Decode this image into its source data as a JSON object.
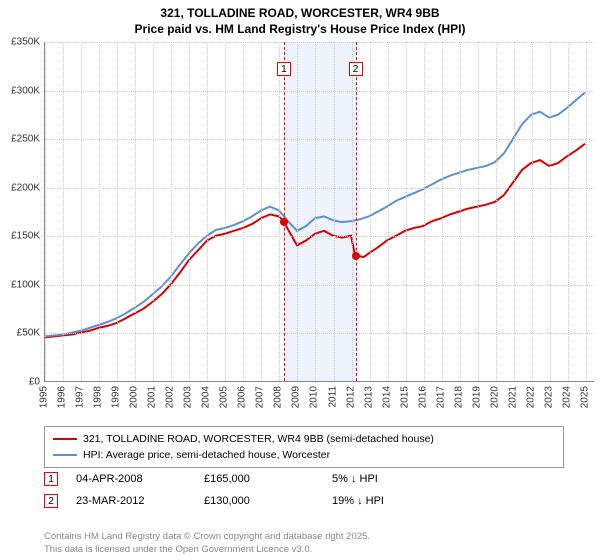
{
  "title_line1": "321, TOLLADINE ROAD, WORCESTER, WR4 9BB",
  "title_line2": "Price paid vs. HM Land Registry's House Price Index (HPI)",
  "chart": {
    "type": "line",
    "background_color": "#ffffff",
    "grid_color": "#cccccc",
    "axis_color": "#888888",
    "x_years": [
      1995,
      1996,
      1997,
      1998,
      1999,
      2000,
      2001,
      2002,
      2003,
      2004,
      2005,
      2006,
      2007,
      2008,
      2009,
      2010,
      2011,
      2012,
      2013,
      2014,
      2015,
      2016,
      2017,
      2018,
      2019,
      2020,
      2021,
      2022,
      2023,
      2024,
      2025
    ],
    "x_min": 1995,
    "x_max": 2025.5,
    "y_ticks": [
      0,
      50000,
      100000,
      150000,
      200000,
      250000,
      300000,
      350000
    ],
    "y_tick_labels": [
      "£0",
      "£50K",
      "£100K",
      "£150K",
      "£200K",
      "£250K",
      "£300K",
      "£350K"
    ],
    "y_min": 0,
    "y_max": 350000,
    "band": {
      "x_start": 2008.25,
      "x_end": 2012.22,
      "fill": "#eef3fb"
    },
    "flags": [
      {
        "n": "1",
        "x": 2008.25
      },
      {
        "n": "2",
        "x": 2012.22
      }
    ],
    "series": [
      {
        "name": "price_paid",
        "color": "#d90000",
        "width": 2,
        "points": [
          [
            1995,
            45000
          ],
          [
            1995.5,
            46000
          ],
          [
            1996,
            47000
          ],
          [
            1996.5,
            48000
          ],
          [
            1997,
            50000
          ],
          [
            1997.5,
            52000
          ],
          [
            1998,
            55000
          ],
          [
            1998.5,
            57000
          ],
          [
            1999,
            60000
          ],
          [
            1999.5,
            65000
          ],
          [
            2000,
            70000
          ],
          [
            2000.5,
            75000
          ],
          [
            2001,
            82000
          ],
          [
            2001.5,
            90000
          ],
          [
            2002,
            100000
          ],
          [
            2002.5,
            112000
          ],
          [
            2003,
            125000
          ],
          [
            2003.5,
            135000
          ],
          [
            2004,
            145000
          ],
          [
            2004.5,
            150000
          ],
          [
            2005,
            152000
          ],
          [
            2005.5,
            155000
          ],
          [
            2006,
            158000
          ],
          [
            2006.5,
            162000
          ],
          [
            2007,
            168000
          ],
          [
            2007.5,
            172000
          ],
          [
            2008,
            170000
          ],
          [
            2008.25,
            165000
          ],
          [
            2008.7,
            150000
          ],
          [
            2009,
            140000
          ],
          [
            2009.5,
            145000
          ],
          [
            2010,
            152000
          ],
          [
            2010.5,
            155000
          ],
          [
            2011,
            150000
          ],
          [
            2011.5,
            148000
          ],
          [
            2012,
            150000
          ],
          [
            2012.22,
            130000
          ],
          [
            2012.7,
            128000
          ],
          [
            2013,
            132000
          ],
          [
            2013.5,
            138000
          ],
          [
            2014,
            145000
          ],
          [
            2014.5,
            150000
          ],
          [
            2015,
            155000
          ],
          [
            2015.5,
            158000
          ],
          [
            2016,
            160000
          ],
          [
            2016.5,
            165000
          ],
          [
            2017,
            168000
          ],
          [
            2017.5,
            172000
          ],
          [
            2018,
            175000
          ],
          [
            2018.5,
            178000
          ],
          [
            2019,
            180000
          ],
          [
            2019.5,
            182000
          ],
          [
            2020,
            185000
          ],
          [
            2020.5,
            192000
          ],
          [
            2021,
            205000
          ],
          [
            2021.5,
            218000
          ],
          [
            2022,
            225000
          ],
          [
            2022.5,
            228000
          ],
          [
            2023,
            222000
          ],
          [
            2023.5,
            225000
          ],
          [
            2024,
            232000
          ],
          [
            2024.5,
            238000
          ],
          [
            2025,
            245000
          ]
        ]
      },
      {
        "name": "hpi",
        "color": "#5b8fd6",
        "width": 2,
        "points": [
          [
            1995,
            46000
          ],
          [
            1995.5,
            47000
          ],
          [
            1996,
            48000
          ],
          [
            1996.5,
            50000
          ],
          [
            1997,
            52000
          ],
          [
            1997.5,
            55000
          ],
          [
            1998,
            58000
          ],
          [
            1998.5,
            61000
          ],
          [
            1999,
            65000
          ],
          [
            1999.5,
            70000
          ],
          [
            2000,
            76000
          ],
          [
            2000.5,
            82000
          ],
          [
            2001,
            90000
          ],
          [
            2001.5,
            98000
          ],
          [
            2002,
            108000
          ],
          [
            2002.5,
            120000
          ],
          [
            2003,
            132000
          ],
          [
            2003.5,
            142000
          ],
          [
            2004,
            150000
          ],
          [
            2004.5,
            156000
          ],
          [
            2005,
            158000
          ],
          [
            2005.5,
            161000
          ],
          [
            2006,
            165000
          ],
          [
            2006.5,
            170000
          ],
          [
            2007,
            176000
          ],
          [
            2007.5,
            180000
          ],
          [
            2008,
            176000
          ],
          [
            2008.5,
            165000
          ],
          [
            2009,
            155000
          ],
          [
            2009.5,
            160000
          ],
          [
            2010,
            168000
          ],
          [
            2010.5,
            170000
          ],
          [
            2011,
            166000
          ],
          [
            2011.5,
            164000
          ],
          [
            2012,
            165000
          ],
          [
            2012.5,
            167000
          ],
          [
            2013,
            170000
          ],
          [
            2013.5,
            175000
          ],
          [
            2014,
            180000
          ],
          [
            2014.5,
            186000
          ],
          [
            2015,
            190000
          ],
          [
            2015.5,
            194000
          ],
          [
            2016,
            198000
          ],
          [
            2016.5,
            203000
          ],
          [
            2017,
            208000
          ],
          [
            2017.5,
            212000
          ],
          [
            2018,
            215000
          ],
          [
            2018.5,
            218000
          ],
          [
            2019,
            220000
          ],
          [
            2019.5,
            222000
          ],
          [
            2020,
            226000
          ],
          [
            2020.5,
            235000
          ],
          [
            2021,
            250000
          ],
          [
            2021.5,
            265000
          ],
          [
            2022,
            275000
          ],
          [
            2022.5,
            278000
          ],
          [
            2023,
            272000
          ],
          [
            2023.5,
            275000
          ],
          [
            2024,
            282000
          ],
          [
            2024.5,
            290000
          ],
          [
            2025,
            298000
          ]
        ]
      }
    ],
    "markers": [
      {
        "x": 2008.25,
        "y": 165000,
        "color": "#d90000"
      },
      {
        "x": 2012.22,
        "y": 130000,
        "color": "#d90000"
      }
    ]
  },
  "legend": {
    "items": [
      {
        "color": "#d90000",
        "label": "321, TOLLADINE ROAD, WORCESTER, WR4 9BB (semi-detached house)"
      },
      {
        "color": "#5b8fd6",
        "label": "HPI: Average price, semi-detached house, Worcester"
      }
    ]
  },
  "annotations": [
    {
      "flag": "1",
      "date": "04-APR-2008",
      "price": "£165,000",
      "delta": "5% ↓ HPI"
    },
    {
      "flag": "2",
      "date": "23-MAR-2012",
      "price": "£130,000",
      "delta": "19% ↓ HPI"
    }
  ],
  "footer_line1": "Contains HM Land Registry data © Crown copyright and database right 2025.",
  "footer_line2": "This data is licensed under the Open Government Licence v3.0."
}
